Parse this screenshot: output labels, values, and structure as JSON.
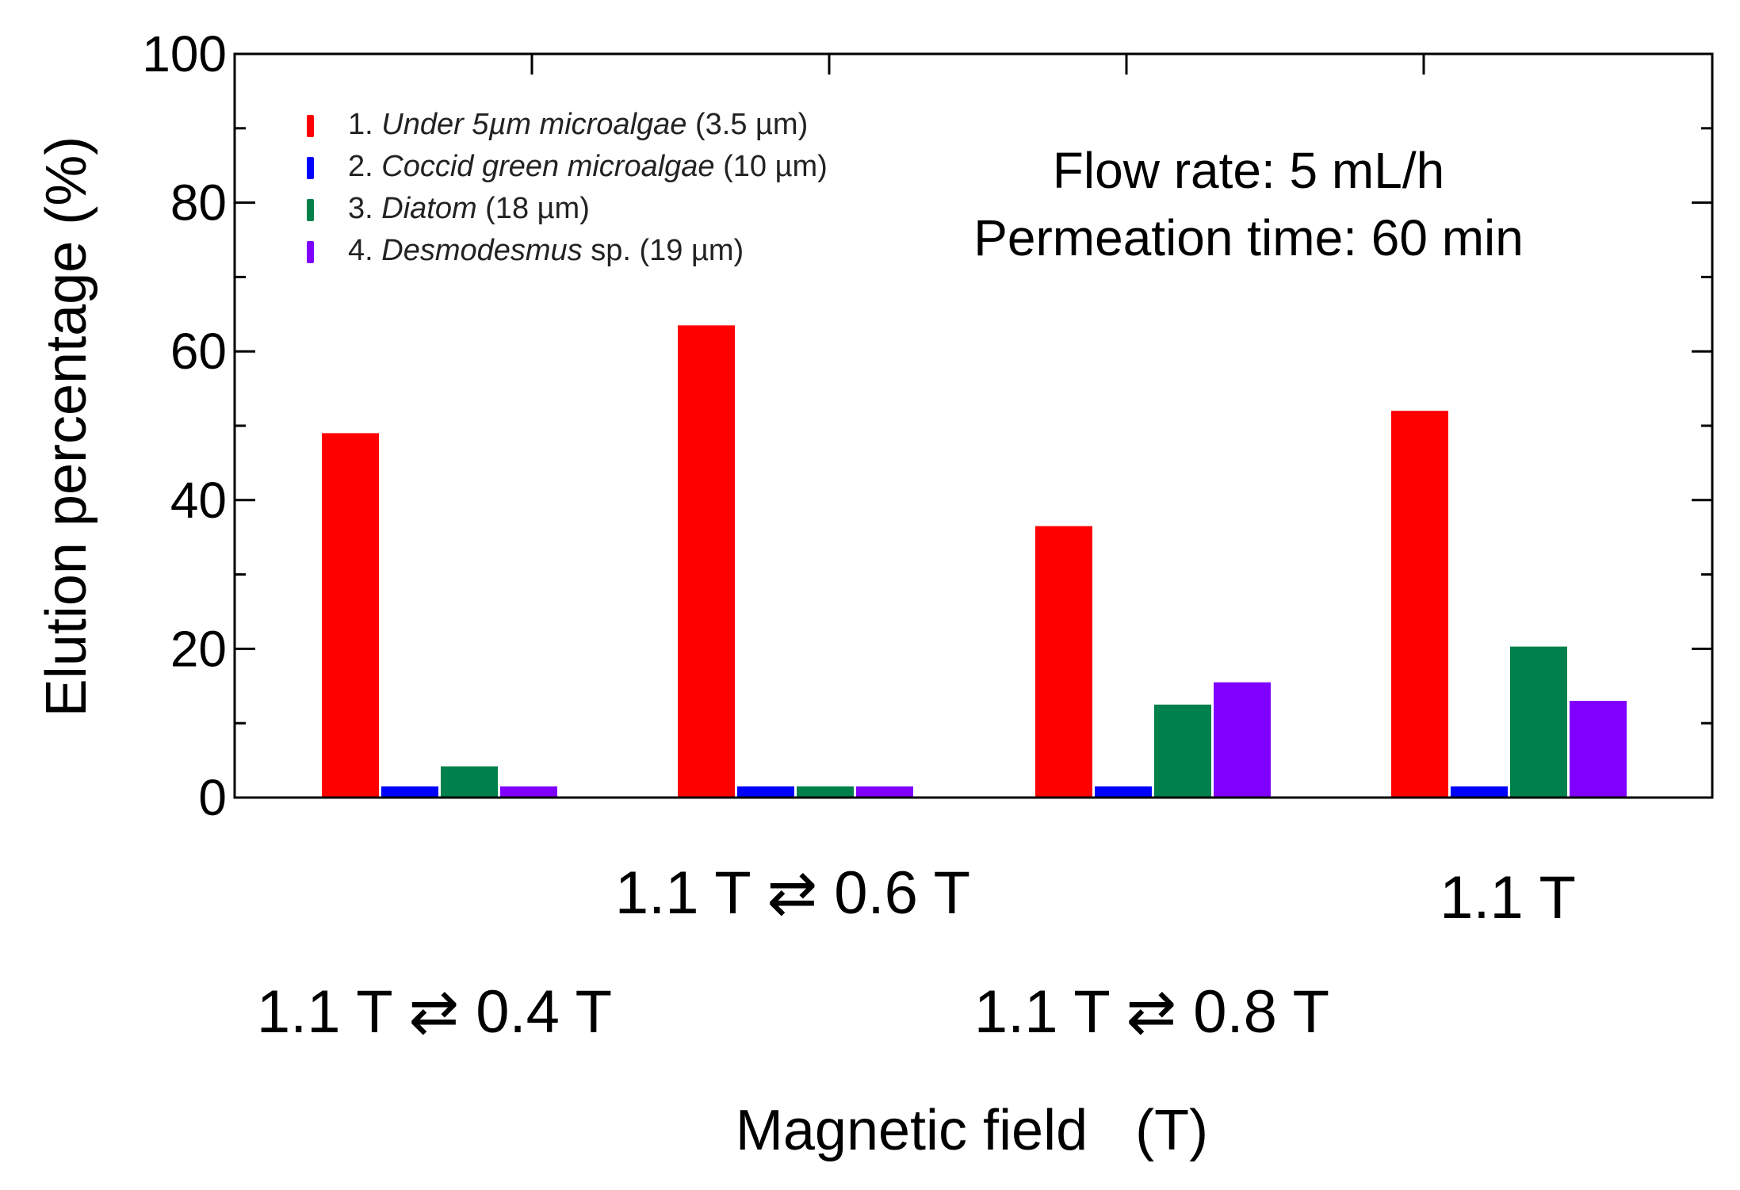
{
  "chart_data": {
    "type": "bar",
    "xlabel": "Magnetic field   (T)",
    "ylabel": "Elution percentage    (%)",
    "ylim": [
      0,
      100
    ],
    "yticks": [
      "0",
      "20",
      "40",
      "60",
      "80",
      "100"
    ],
    "categories": [
      "1.1 T ⇄ 0.4 T",
      "1.1 T ⇄ 0.6 T",
      "1.1 T ⇄ 0.8 T",
      "1.1 T"
    ],
    "series": [
      {
        "name": "Under 5µm microalgae",
        "legend_prefix": "1. ",
        "legend_suffix": " (3.5 µm)",
        "color": "#ff0000",
        "values": [
          49,
          63.5,
          36.5,
          52
        ]
      },
      {
        "name": "Coccid green microalgae",
        "legend_prefix": "2. ",
        "legend_suffix": " (10 µm)",
        "color": "#0000ff",
        "values": [
          1.5,
          1.5,
          1.5,
          1.5
        ]
      },
      {
        "name": "Diatom",
        "legend_prefix": "3. ",
        "legend_suffix": " (18 µm)",
        "color": "#00804a",
        "values": [
          4.2,
          1.5,
          12.5,
          20.3
        ]
      },
      {
        "name": "Desmodesmus",
        "legend_prefix": "4. ",
        "legend_suffix": " sp. (19 µm)",
        "color": "#8000ff",
        "values": [
          1.5,
          1.5,
          15.5,
          13
        ]
      }
    ],
    "annotations": [
      "Flow rate: 5 mL/h",
      "Permeation time: 60 min"
    ],
    "legend_position": "top-left",
    "grid": false
  }
}
